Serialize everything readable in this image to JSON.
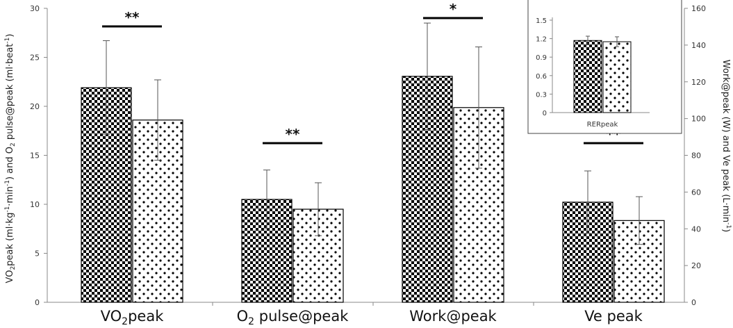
{
  "chart_data": {
    "type": "bar",
    "categories": [
      "VO2peak",
      "O2 pulse@peak",
      "Work@peak",
      "Ve peak"
    ],
    "category_labels": [
      {
        "main": "VO",
        "sub": "2",
        "rest": "peak"
      },
      {
        "main": "O",
        "sub": "2",
        "rest": " pulse@peak"
      },
      {
        "main": "Work@peak",
        "sub": "",
        "rest": ""
      },
      {
        "main": "Ve peak",
        "sub": "",
        "rest": ""
      }
    ],
    "left_axis": {
      "label_parts": [
        {
          "t": "VO"
        },
        {
          "t": "2",
          "sub": true
        },
        {
          "t": "peak (ml·kg"
        },
        {
          "t": "-1",
          "sup": true
        },
        {
          "t": "·min"
        },
        {
          "t": "-1",
          "sup": true
        },
        {
          "t": ") and O"
        },
        {
          "t": "2",
          "sub": true
        },
        {
          "t": " pulse@peak (ml·beat"
        },
        {
          "t": "-1",
          "sup": true
        },
        {
          "t": ")"
        }
      ],
      "ylim": [
        0,
        30
      ],
      "ticks": [
        0,
        5,
        10,
        15,
        20,
        25,
        30
      ]
    },
    "right_axis": {
      "label_parts": [
        {
          "t": "Work@peak (W) and Ve peak (L·min"
        },
        {
          "t": "-1",
          "sup": true
        },
        {
          "t": ")"
        }
      ],
      "ylim": [
        0,
        160
      ],
      "ticks": [
        0,
        20,
        40,
        60,
        80,
        100,
        120,
        140,
        160
      ]
    },
    "series": [
      {
        "pattern": "checker",
        "values": [
          21.9,
          10.5,
          123,
          54.5
        ],
        "errors": [
          4.8,
          3.0,
          29,
          17
        ],
        "axis": [
          "left",
          "left",
          "right",
          "right"
        ]
      },
      {
        "pattern": "dots",
        "values": [
          18.6,
          9.5,
          106,
          44.5
        ],
        "errors": [
          4.1,
          2.7,
          33,
          13
        ],
        "axis": [
          "left",
          "left",
          "right",
          "right"
        ]
      }
    ],
    "significance": [
      {
        "category": 0,
        "label": "**"
      },
      {
        "category": 1,
        "label": "**"
      },
      {
        "category": 2,
        "label": "*"
      },
      {
        "category": 3,
        "label": "**"
      }
    ],
    "inset": {
      "xlabel": "RERpeak",
      "ylim": [
        0,
        1.5
      ],
      "ticks": [
        "0",
        "0.3",
        "0.6",
        "0.9",
        "1.2",
        "1.5"
      ],
      "values": [
        1.17,
        1.15
      ],
      "errors": [
        0.07,
        0.08
      ]
    },
    "legend": "none",
    "grid": false
  }
}
